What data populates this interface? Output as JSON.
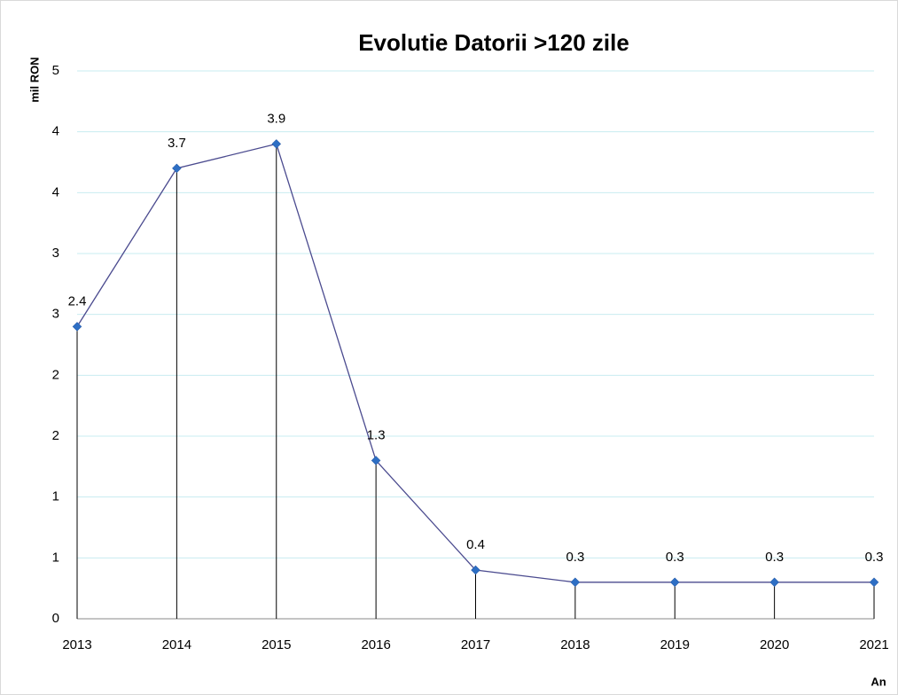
{
  "chart_data": {
    "type": "line",
    "title": "Evolutie Datorii >120 zile",
    "y_label": "mil RON",
    "x_label": "An",
    "categories": [
      "2013",
      "2014",
      "2015",
      "2016",
      "2017",
      "2018",
      "2019",
      "2020",
      "2021"
    ],
    "series": [
      {
        "name": "Datorii >120 zile",
        "color": "#4b4b8f",
        "marker_color": "#2e6fc4",
        "values": [
          2.4,
          3.7,
          3.9,
          1.3,
          0.4,
          0.3,
          0.3,
          0.3,
          0.3
        ]
      }
    ],
    "ylim": [
      0,
      4.5
    ],
    "yticks": [
      0,
      {
        "value": 0.5,
        "label": "1"
      },
      1,
      {
        "value": 1.5,
        "label": "2"
      },
      2,
      {
        "value": 2.5,
        "label": "3"
      },
      3,
      {
        "value": 3.5,
        "label": "4"
      },
      4,
      {
        "value": 4.5,
        "label": "5"
      }
    ],
    "grid": true,
    "drop_lines": true
  }
}
